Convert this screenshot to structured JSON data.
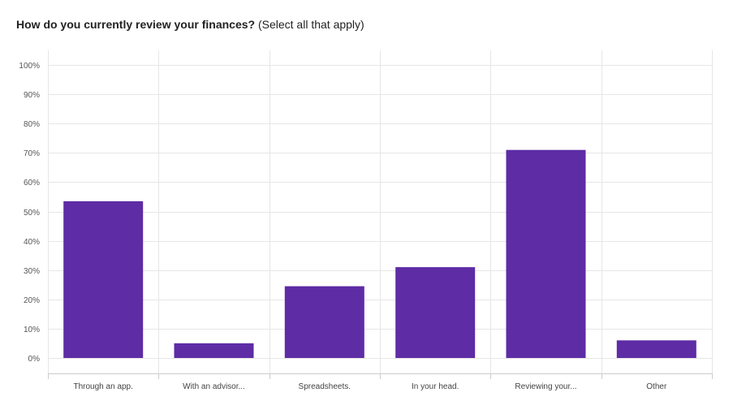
{
  "question": {
    "title": "How do you currently review your finances?",
    "hint": "(Select all that apply)"
  },
  "colors": {
    "bar": "#5e2ca5",
    "grid": "#e6e6e6",
    "axis": "#cccccc"
  },
  "chart_data": {
    "type": "bar",
    "title": "How do you currently review your finances?",
    "subtitle": "(Select all that apply)",
    "categories": [
      "Through an app.",
      "With an advisor...",
      "Spreadsheets.",
      "In your head.",
      "Reviewing your...",
      "Other"
    ],
    "values": [
      53.5,
      5,
      24.5,
      31,
      71,
      6
    ],
    "value_unit": "%",
    "ylim": [
      0,
      100
    ],
    "y_ticks": [
      "0%",
      "10%",
      "20%",
      "30%",
      "40%",
      "50%",
      "60%",
      "70%",
      "80%",
      "90%",
      "100%"
    ],
    "grid": true,
    "legend": "none"
  }
}
